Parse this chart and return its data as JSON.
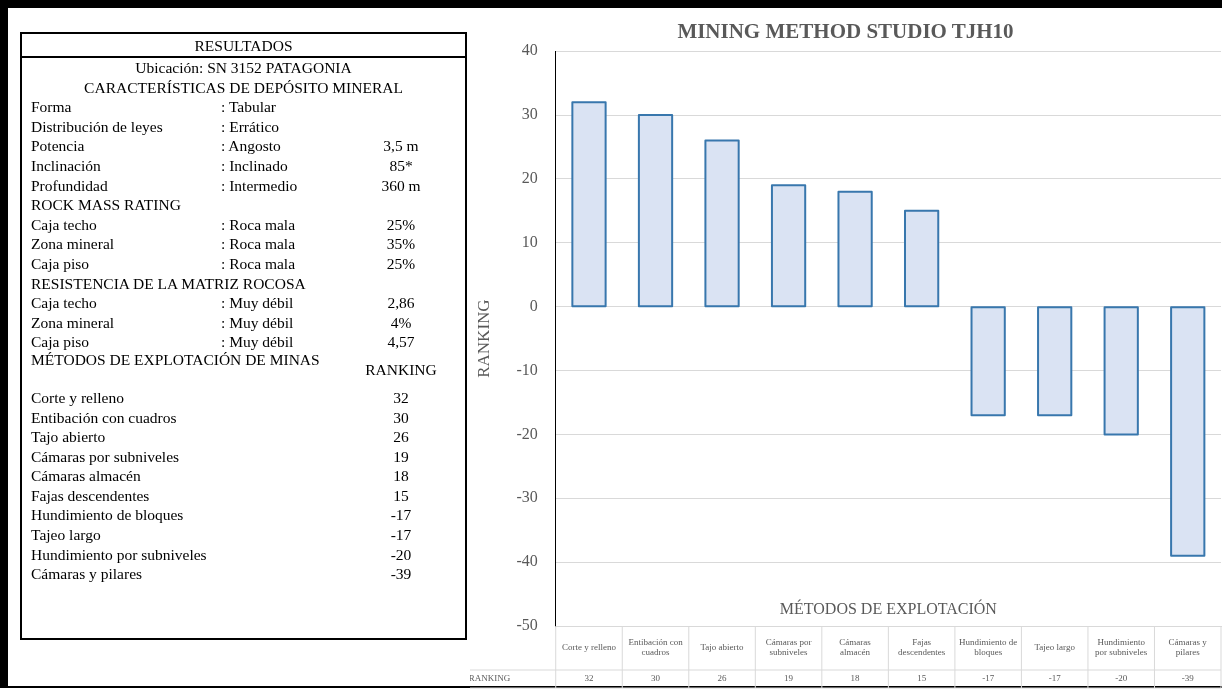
{
  "chart_data": [
    {
      "type": "other",
      "title": "RESULTADOS",
      "annotations": [
        "Ubicación: SN 3152 PATAGONIA",
        "CARACTERÍSTICAS DE DEPÓSITO MINERAL",
        "Forma\t: Tabular\t",
        "Distribución de leyes\t: Errático\t",
        "Potencia\t: Angosto\t3,5 m",
        "Inclinación\t: Inclinado\t85*",
        "Profundidad\t: Intermedio\t360 m",
        "ROCK MASS RATING\t\t",
        "Caja techo\t: Roca mala\t25%",
        "Zona mineral\t: Roca mala\t35%",
        "Caja piso\t: Roca mala\t25%",
        "RESISTENCIA DE LA MATRIZ ROCOSA\t\t",
        "Caja techo\t: Muy débil\t2,86",
        "Zona mineral\t: Muy débil\t4%",
        "Caja piso\t: Muy débil\t4,57",
        "MÉTODOS DE EXPLOTACIÓN DE MINAS\t\tRANKING",
        "Corte y relleno\t\t32",
        "Entibación con cuadros\t\t30",
        "Tajo abierto\t\t26",
        "Cámaras por subniveles\t\t19",
        "Cámaras almacén\t\t18",
        "Fajas descendentes\t\t15",
        "Hundimiento de bloques\t\t-17",
        "Tajeo largo\t\t-17",
        "Hundimiento por subniveles\t\t-20",
        "Cámaras y pilares\t\t-39"
      ]
    },
    {
      "type": "bar",
      "title": "MINING METHOD STUDIO TJH10",
      "ylabel": "RANKING",
      "xlabel": "MÉTODOS DE EXPLOTACIÓN",
      "categories": [
        "Corte y relleno",
        "Entibación con cuadros",
        "Tajo abierto",
        "Cámaras por subniveles",
        "Cámaras almacén",
        "Fajas descendentes",
        "Hundimiento de bloques",
        "Tajeo largo",
        "Hundimiento por subniveles",
        "Cámaras y pilares"
      ],
      "series": [
        {
          "name": "RANKING",
          "color": "#dae3f3",
          "values": [
            32,
            30,
            26,
            19,
            18,
            15,
            -17,
            -17,
            -20,
            -39
          ]
        }
      ],
      "ylim": [
        -50,
        40
      ],
      "yticks": [
        -50,
        -40,
        -30,
        -20,
        -10,
        0,
        10,
        20,
        30,
        40
      ],
      "grid": "y",
      "legend": "bottom",
      "data_labels": true
    }
  ]
}
